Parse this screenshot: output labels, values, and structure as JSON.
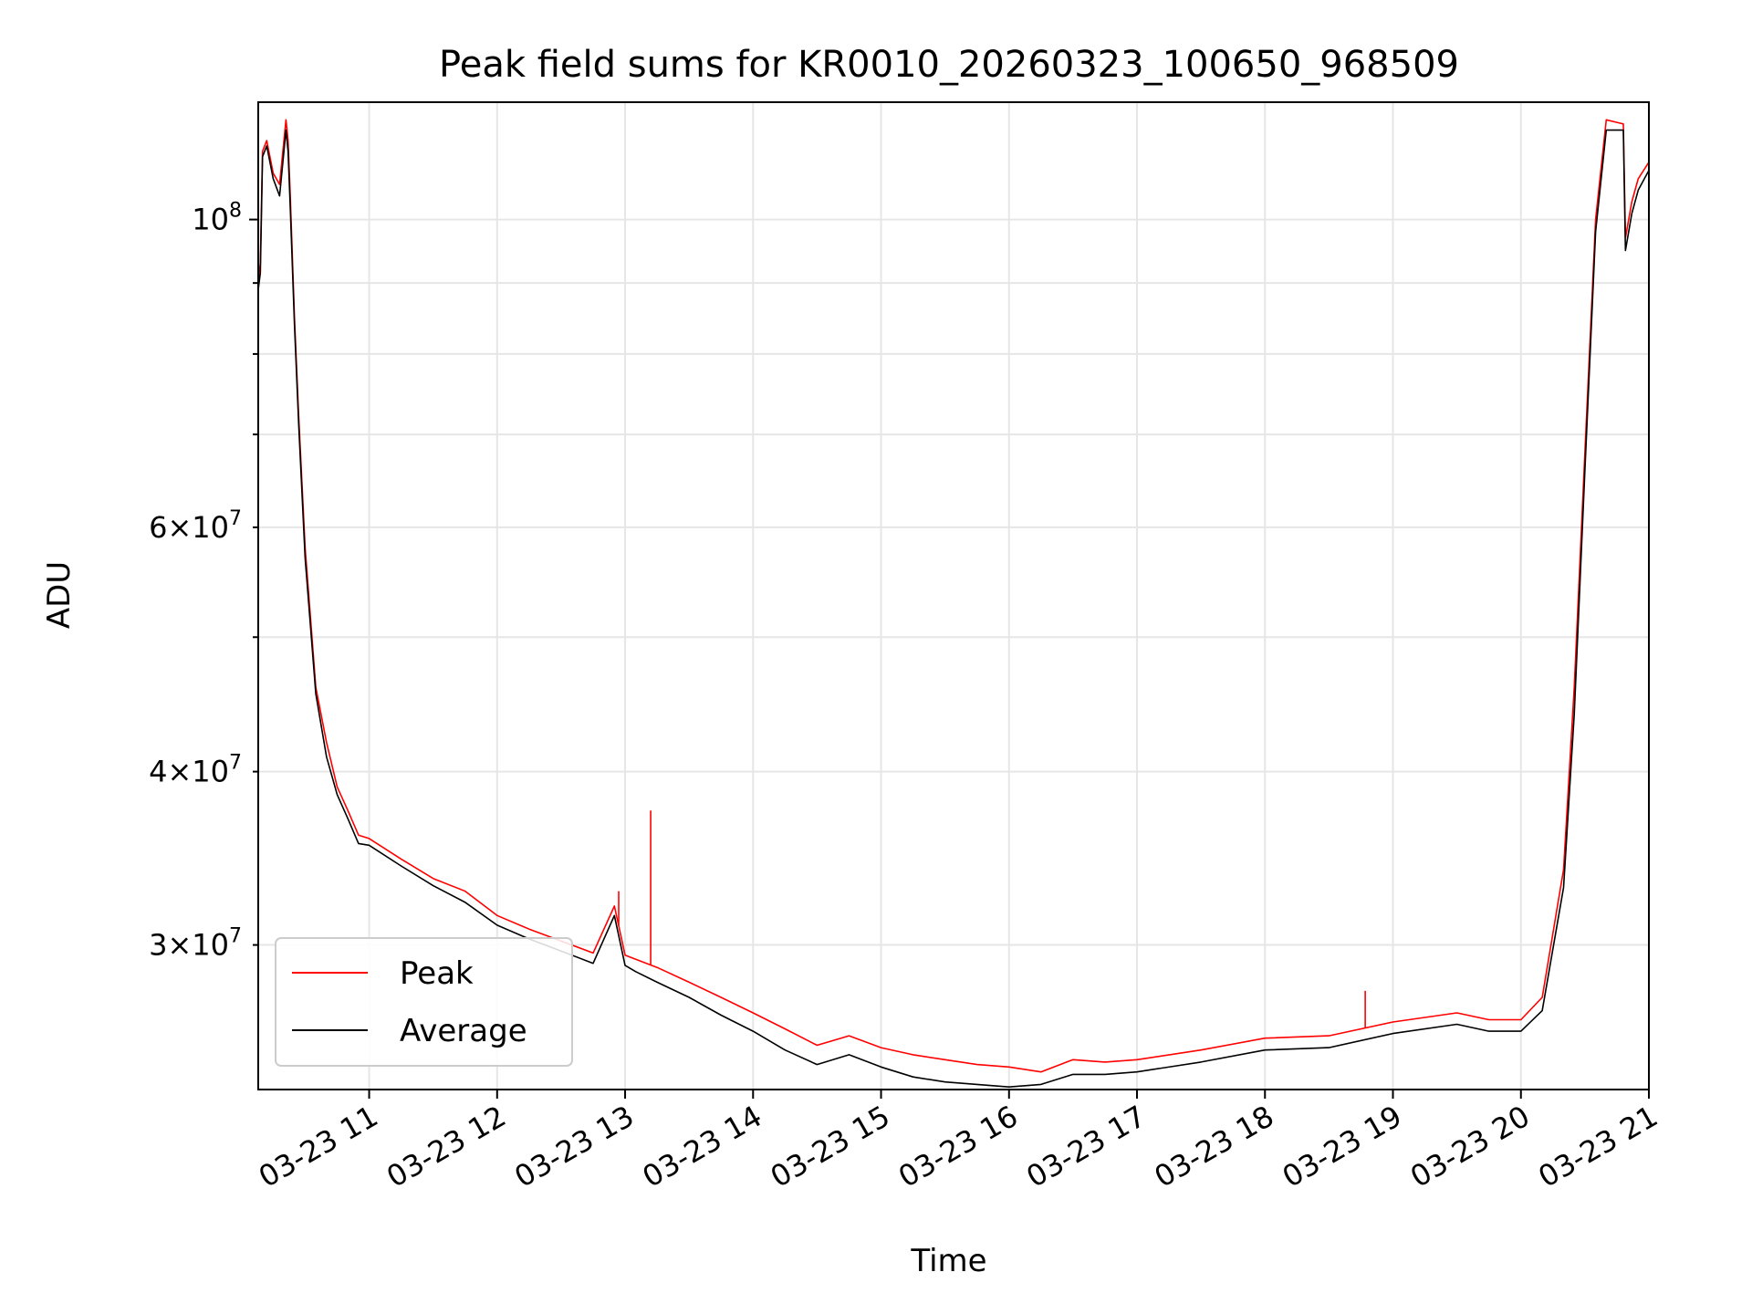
{
  "chart_data": {
    "type": "line",
    "title": "Peak field sums for KR0010_20260323_100650_968509",
    "xlabel": "Time",
    "ylabel": "ADU",
    "yscale": "log",
    "grid": true,
    "legend_position": "lower-left",
    "xlim": [
      "2026-03-23 10:08",
      "2026-03-23 21:00"
    ],
    "ylim": [
      23600000,
      121500000
    ],
    "x_ticks": [
      {
        "value": "2026-03-23 11:00",
        "label": "03-23 11"
      },
      {
        "value": "2026-03-23 12:00",
        "label": "03-23 12"
      },
      {
        "value": "2026-03-23 13:00",
        "label": "03-23 13"
      },
      {
        "value": "2026-03-23 14:00",
        "label": "03-23 14"
      },
      {
        "value": "2026-03-23 15:00",
        "label": "03-23 15"
      },
      {
        "value": "2026-03-23 16:00",
        "label": "03-23 16"
      },
      {
        "value": "2026-03-23 17:00",
        "label": "03-23 17"
      },
      {
        "value": "2026-03-23 18:00",
        "label": "03-23 18"
      },
      {
        "value": "2026-03-23 19:00",
        "label": "03-23 19"
      },
      {
        "value": "2026-03-23 20:00",
        "label": "03-23 20"
      },
      {
        "value": "2026-03-23 21:00",
        "label": "03-23 21"
      }
    ],
    "y_major_ticks": [
      {
        "value": 100000000,
        "base": "10",
        "exp": "8"
      }
    ],
    "y_minor_ticks": [
      {
        "value": 30000000,
        "mant": "3",
        "exp": "7"
      },
      {
        "value": 40000000,
        "mant": "4",
        "exp": "7"
      },
      {
        "value": 50000000,
        "mant": "",
        "exp": ""
      },
      {
        "value": 60000000,
        "mant": "6",
        "exp": "7"
      },
      {
        "value": 70000000,
        "mant": "",
        "exp": ""
      },
      {
        "value": 80000000,
        "mant": "",
        "exp": ""
      },
      {
        "value": 90000000,
        "mant": "",
        "exp": ""
      }
    ],
    "series": [
      {
        "name": "Peak",
        "color": "#ff0000",
        "x": [
          "2026-03-23 10:08",
          "2026-03-23 10:09",
          "2026-03-23 10:10",
          "2026-03-23 10:12",
          "2026-03-23 10:15",
          "2026-03-23 10:18",
          "2026-03-23 10:21",
          "2026-03-23 10:22",
          "2026-03-23 10:23",
          "2026-03-23 10:25",
          "2026-03-23 10:27",
          "2026-03-23 10:30",
          "2026-03-23 10:35",
          "2026-03-23 10:40",
          "2026-03-23 10:45",
          "2026-03-23 10:50",
          "2026-03-23 10:55",
          "2026-03-23 11:00",
          "2026-03-23 11:15",
          "2026-03-23 11:30",
          "2026-03-23 11:45",
          "2026-03-23 12:00",
          "2026-03-23 12:15",
          "2026-03-23 12:30",
          "2026-03-23 12:45",
          "2026-03-23 12:55",
          "2026-03-23 13:00",
          "2026-03-23 13:05",
          "2026-03-23 13:15",
          "2026-03-23 13:30",
          "2026-03-23 13:45",
          "2026-03-23 14:00",
          "2026-03-23 14:15",
          "2026-03-23 14:30",
          "2026-03-23 14:45",
          "2026-03-23 15:00",
          "2026-03-23 15:15",
          "2026-03-23 15:30",
          "2026-03-23 15:45",
          "2026-03-23 16:00",
          "2026-03-23 16:15",
          "2026-03-23 16:30",
          "2026-03-23 16:45",
          "2026-03-23 17:00",
          "2026-03-23 17:30",
          "2026-03-23 18:00",
          "2026-03-23 18:30",
          "2026-03-23 19:00",
          "2026-03-23 19:30",
          "2026-03-23 19:45",
          "2026-03-23 20:00",
          "2026-03-23 20:10",
          "2026-03-23 20:20",
          "2026-03-23 20:25",
          "2026-03-23 20:30",
          "2026-03-23 20:35",
          "2026-03-23 20:40",
          "2026-03-23 20:45",
          "2026-03-23 20:48",
          "2026-03-23 20:49",
          "2026-03-23 20:52",
          "2026-03-23 20:55",
          "2026-03-23 21:00"
        ],
        "y": [
          90000000,
          93000000,
          112000000,
          114000000,
          108000000,
          106000000,
          118000000,
          114000000,
          104000000,
          85000000,
          72000000,
          58000000,
          46000000,
          42000000,
          39000000,
          37500000,
          36000000,
          35800000,
          34600000,
          33500000,
          32800000,
          31500000,
          30800000,
          30200000,
          29600000,
          32000000,
          29500000,
          29300000,
          28900000,
          28200000,
          27500000,
          26800000,
          26100000,
          25400000,
          25800000,
          25300000,
          25000000,
          24800000,
          24600000,
          24500000,
          24300000,
          24800000,
          24700000,
          24800000,
          25200000,
          25700000,
          25800000,
          26400000,
          26800000,
          26500000,
          26500000,
          27500000,
          34000000,
          46000000,
          68000000,
          100000000,
          118000000,
          117500000,
          117200000,
          97000000,
          103000000,
          107000000,
          110000000
        ],
        "spikes": [
          {
            "x": "2026-03-23 12:57",
            "y": 32800000
          },
          {
            "x": "2026-03-23 13:12",
            "y": 37500000
          },
          {
            "x": "2026-03-23 18:47",
            "y": 27800000
          }
        ]
      },
      {
        "name": "Average",
        "color": "#000000",
        "x": [
          "2026-03-23 10:08",
          "2026-03-23 10:09",
          "2026-03-23 10:10",
          "2026-03-23 10:12",
          "2026-03-23 10:15",
          "2026-03-23 10:18",
          "2026-03-23 10:21",
          "2026-03-23 10:22",
          "2026-03-23 10:23",
          "2026-03-23 10:25",
          "2026-03-23 10:27",
          "2026-03-23 10:30",
          "2026-03-23 10:35",
          "2026-03-23 10:40",
          "2026-03-23 10:45",
          "2026-03-23 10:50",
          "2026-03-23 10:55",
          "2026-03-23 11:00",
          "2026-03-23 11:15",
          "2026-03-23 11:30",
          "2026-03-23 11:45",
          "2026-03-23 12:00",
          "2026-03-23 12:15",
          "2026-03-23 12:30",
          "2026-03-23 12:45",
          "2026-03-23 12:55",
          "2026-03-23 13:00",
          "2026-03-23 13:05",
          "2026-03-23 13:15",
          "2026-03-23 13:30",
          "2026-03-23 13:45",
          "2026-03-23 14:00",
          "2026-03-23 14:15",
          "2026-03-23 14:30",
          "2026-03-23 14:45",
          "2026-03-23 15:00",
          "2026-03-23 15:15",
          "2026-03-23 15:30",
          "2026-03-23 15:45",
          "2026-03-23 16:00",
          "2026-03-23 16:15",
          "2026-03-23 16:30",
          "2026-03-23 16:45",
          "2026-03-23 17:00",
          "2026-03-23 17:30",
          "2026-03-23 18:00",
          "2026-03-23 18:30",
          "2026-03-23 19:00",
          "2026-03-23 19:30",
          "2026-03-23 19:45",
          "2026-03-23 20:00",
          "2026-03-23 20:10",
          "2026-03-23 20:20",
          "2026-03-23 20:25",
          "2026-03-23 20:30",
          "2026-03-23 20:35",
          "2026-03-23 20:40",
          "2026-03-23 20:45",
          "2026-03-23 20:48",
          "2026-03-23 20:49",
          "2026-03-23 20:52",
          "2026-03-23 20:55",
          "2026-03-23 21:00"
        ],
        "y": [
          89000000,
          91500000,
          111000000,
          113000000,
          107000000,
          104000000,
          116000000,
          112000000,
          102000000,
          84000000,
          71000000,
          57000000,
          45500000,
          41000000,
          38500000,
          37000000,
          35500000,
          35400000,
          34200000,
          33100000,
          32200000,
          31000000,
          30300000,
          29700000,
          29100000,
          31500000,
          29000000,
          28700000,
          28200000,
          27500000,
          26700000,
          26000000,
          25200000,
          24600000,
          25000000,
          24500000,
          24100000,
          23900000,
          23800000,
          23700000,
          23800000,
          24200000,
          24200000,
          24300000,
          24700000,
          25200000,
          25300000,
          25900000,
          26300000,
          26000000,
          26000000,
          26900000,
          33000000,
          44000000,
          66000000,
          98000000,
          116000000,
          116000000,
          116000000,
          95000000,
          101000000,
          105000000,
          108500000
        ]
      }
    ]
  }
}
